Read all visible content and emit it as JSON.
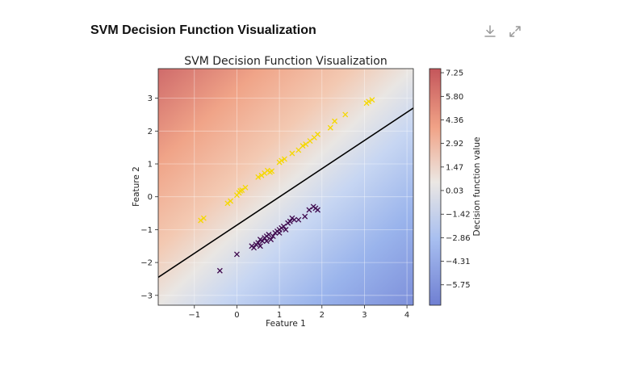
{
  "page": {
    "title": "SVM Decision Function Visualization"
  },
  "toolbar": {
    "download_icon": "download-icon",
    "expand_icon": "expand-icon"
  },
  "chart_data": {
    "type": "scatter",
    "title": "SVM Decision Function Visualization",
    "xlabel": "Feature 1",
    "ylabel": "Feature 2",
    "xlim": [
      -1.85,
      4.15
    ],
    "ylim": [
      -3.3,
      3.9
    ],
    "xticks": [
      -1,
      0,
      1,
      2,
      3,
      4
    ],
    "yticks": [
      -3,
      -2,
      -1,
      0,
      1,
      2,
      3
    ],
    "grid": true,
    "background": "decision function heatmap (coolwarm), value increases toward top-left",
    "decision_boundary": {
      "points": [
        [
          -1.85,
          -2.45
        ],
        [
          4.15,
          2.7
        ]
      ],
      "color": "#000000"
    },
    "colorbar": {
      "label": "Decision function value",
      "range": [
        -7.0,
        7.5
      ],
      "ticks": [
        7.25,
        5.8,
        4.36,
        2.92,
        1.47,
        0.03,
        -1.42,
        -2.86,
        -4.31,
        -5.75
      ],
      "tick_labels": [
        "7.25",
        "5.80",
        "4.36",
        "2.92",
        "1.47",
        "0.03",
        "−1.42",
        "−2.86",
        "−4.31",
        "−5.75"
      ],
      "colors": [
        "#b40426",
        "#f7f7f7",
        "#3b4cc0"
      ]
    },
    "series": [
      {
        "marker": "x",
        "color": "#f5d800",
        "points": [
          [
            -0.85,
            -0.72
          ],
          [
            -0.78,
            -0.65
          ],
          [
            -0.22,
            -0.2
          ],
          [
            -0.15,
            -0.13
          ],
          [
            0.0,
            0.05
          ],
          [
            0.05,
            0.12
          ],
          [
            0.08,
            0.18
          ],
          [
            0.12,
            0.2
          ],
          [
            0.2,
            0.28
          ],
          [
            0.5,
            0.6
          ],
          [
            0.58,
            0.65
          ],
          [
            0.65,
            0.72
          ],
          [
            0.72,
            0.8
          ],
          [
            0.78,
            0.75
          ],
          [
            0.82,
            0.78
          ],
          [
            1.0,
            1.05
          ],
          [
            1.05,
            1.1
          ],
          [
            1.12,
            1.15
          ],
          [
            1.3,
            1.32
          ],
          [
            1.45,
            1.42
          ],
          [
            1.55,
            1.55
          ],
          [
            1.62,
            1.6
          ],
          [
            1.72,
            1.7
          ],
          [
            1.82,
            1.8
          ],
          [
            1.9,
            1.9
          ],
          [
            2.2,
            2.1
          ],
          [
            2.3,
            2.3
          ],
          [
            2.55,
            2.5
          ],
          [
            3.05,
            2.85
          ],
          [
            3.1,
            2.9
          ],
          [
            3.18,
            2.95
          ]
        ]
      },
      {
        "marker": "x",
        "color": "#3f0a4f",
        "points": [
          [
            -0.4,
            -2.25
          ],
          [
            0.0,
            -1.75
          ],
          [
            0.35,
            -1.5
          ],
          [
            0.4,
            -1.55
          ],
          [
            0.45,
            -1.45
          ],
          [
            0.5,
            -1.4
          ],
          [
            0.55,
            -1.3
          ],
          [
            0.6,
            -1.35
          ],
          [
            0.65,
            -1.25
          ],
          [
            0.7,
            -1.2
          ],
          [
            0.75,
            -1.15
          ],
          [
            0.8,
            -1.3
          ],
          [
            0.85,
            -1.2
          ],
          [
            0.9,
            -1.1
          ],
          [
            0.95,
            -1.05
          ],
          [
            1.0,
            -1.0
          ],
          [
            1.05,
            -0.95
          ],
          [
            1.1,
            -0.9
          ],
          [
            1.15,
            -1.0
          ],
          [
            1.2,
            -0.8
          ],
          [
            1.25,
            -0.75
          ],
          [
            1.3,
            -0.65
          ],
          [
            1.35,
            -0.7
          ],
          [
            1.45,
            -0.7
          ],
          [
            1.6,
            -0.6
          ],
          [
            1.7,
            -0.4
          ],
          [
            1.8,
            -0.3
          ],
          [
            1.85,
            -0.35
          ],
          [
            1.9,
            -0.4
          ],
          [
            0.55,
            -1.5
          ],
          [
            0.7,
            -1.35
          ],
          [
            1.0,
            -1.1
          ]
        ]
      }
    ]
  }
}
